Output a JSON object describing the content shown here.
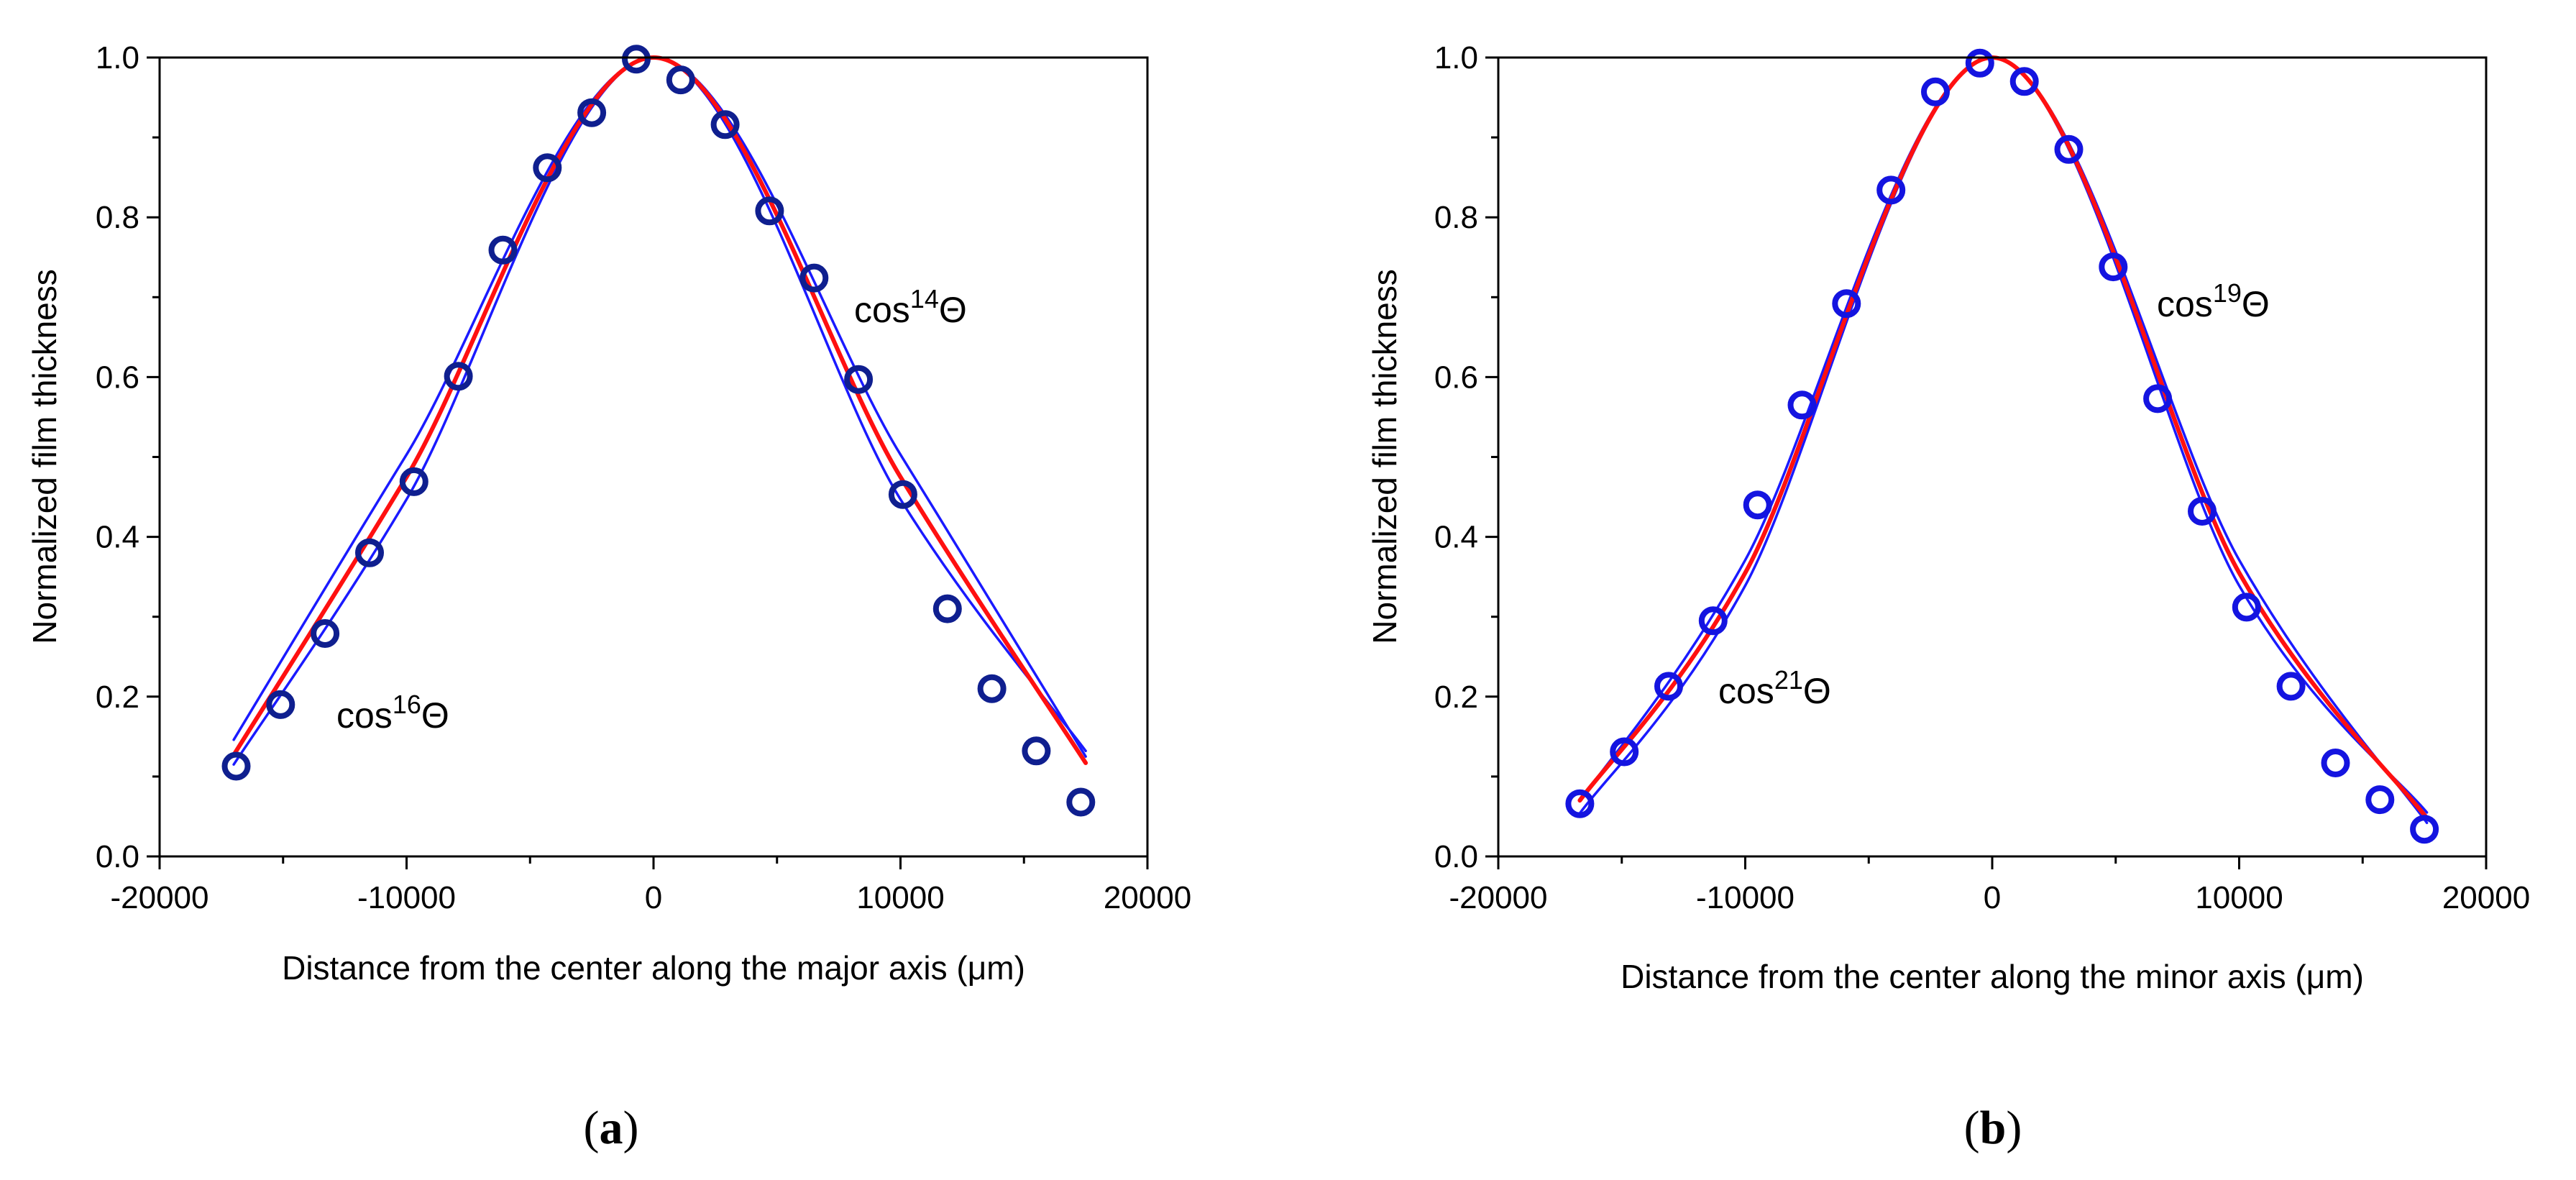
{
  "figure": {
    "panels": [
      {
        "panel_label": "a",
        "annotations": [
          {
            "base": "cos",
            "exponent": "16",
            "suffix": "Θ",
            "near_curve": "cos16"
          },
          {
            "base": "cos",
            "exponent": "14",
            "suffix": "Θ",
            "near_curve": "cos14"
          }
        ]
      },
      {
        "panel_label": "b",
        "annotations": [
          {
            "base": "cos",
            "exponent": "21",
            "suffix": "Θ",
            "near_curve": "cos21"
          },
          {
            "base": "cos",
            "exponent": "19",
            "suffix": "Θ",
            "near_curve": "cos19"
          }
        ]
      }
    ]
  },
  "chart_data": [
    {
      "type": "scatter",
      "title": "",
      "xlabel": "Distance from the center along the major axis (μm)",
      "ylabel": "Normalized film thickness",
      "xlim": [
        -20000,
        20000
      ],
      "ylim": [
        0.0,
        1.0
      ],
      "xticks": [
        -20000,
        -10000,
        0,
        10000,
        20000
      ],
      "xtick_labels": [
        "-20000",
        "-10000",
        "0",
        "10000",
        "20000"
      ],
      "yticks": [
        0.0,
        0.2,
        0.4,
        0.6,
        0.8,
        1.0
      ],
      "ytick_labels": [
        "0.0",
        "0.2",
        "0.4",
        "0.6",
        "0.8",
        "1.0"
      ],
      "grid": false,
      "series": [
        {
          "kind": "points",
          "color": "#0f1f8f",
          "x": [
            -16900,
            -15100,
            -13300,
            -11500,
            -9700,
            -7900,
            -6100,
            -4300,
            -2500,
            -700,
            1100,
            2900,
            4700,
            6500,
            8300,
            10100,
            11900,
            13700,
            15500,
            17300
          ],
          "y": [
            0.113,
            0.19,
            0.279,
            0.38,
            0.469,
            0.601,
            0.759,
            0.862,
            0.931,
            0.998,
            0.972,
            0.916,
            0.808,
            0.724,
            0.597,
            0.453,
            0.31,
            0.21,
            0.132,
            0.068
          ]
        },
        {
          "kind": "curve",
          "model": "cos16",
          "color": "#1a1aff",
          "x0": -17000,
          "x1": 17500,
          "x": [
            -17000,
            -10000,
            0,
            10000,
            17500
          ],
          "y": [
            0.146,
            0.503,
            1.0,
            0.503,
            0.125
          ]
        },
        {
          "kind": "curve",
          "model": "cos14",
          "color": "#1a1aff",
          "x0": -17000,
          "x1": 17500,
          "x": [
            -17000,
            -10000,
            0,
            10000,
            17500
          ],
          "y": [
            0.115,
            0.447,
            1.0,
            0.447,
            0.132
          ]
        },
        {
          "kind": "curve",
          "model": "fit",
          "color": "#ff1010",
          "x0": -17000,
          "x1": 17500,
          "x": [
            -17000,
            -10000,
            0,
            10000,
            17500
          ],
          "y": [
            0.127,
            0.475,
            1.0,
            0.475,
            0.117
          ]
        }
      ]
    },
    {
      "type": "scatter",
      "title": "",
      "xlabel": "Distance from the center along the minor axis (μm)",
      "ylabel": "Normalized film thickness",
      "xlim": [
        -20000,
        20000
      ],
      "ylim": [
        0.0,
        1.0
      ],
      "xticks": [
        -20000,
        -10000,
        0,
        10000,
        20000
      ],
      "xtick_labels": [
        "-20000",
        "-10000",
        "0",
        "10000",
        "20000"
      ],
      "yticks": [
        0.0,
        0.2,
        0.4,
        0.6,
        0.8,
        1.0
      ],
      "ytick_labels": [
        "0.0",
        "0.2",
        "0.4",
        "0.6",
        "0.8",
        "1.0"
      ],
      "grid": false,
      "series": [
        {
          "kind": "points",
          "color": "#1414e0",
          "x": [
            -16700,
            -14900,
            -13100,
            -11300,
            -9500,
            -7700,
            -5900,
            -4100,
            -2300,
            -500,
            1300,
            3100,
            4900,
            6700,
            8500,
            10300,
            12100,
            13900,
            15700,
            17500
          ],
          "y": [
            0.066,
            0.131,
            0.213,
            0.295,
            0.44,
            0.565,
            0.692,
            0.834,
            0.957,
            0.993,
            0.97,
            0.885,
            0.738,
            0.573,
            0.432,
            0.312,
            0.213,
            0.117,
            0.071,
            0.034
          ]
        },
        {
          "kind": "curve",
          "model": "cos21",
          "color": "#1a1aff",
          "x0": -16700,
          "x1": 17600,
          "x": [
            -16700,
            -10000,
            0,
            10000,
            17600
          ],
          "y": [
            0.069,
            0.371,
            1.0,
            0.371,
            0.042
          ]
        },
        {
          "kind": "curve",
          "model": "cos19",
          "color": "#1a1aff",
          "x0": -16700,
          "x1": 17600,
          "x": [
            -16700,
            -10000,
            0,
            10000,
            17600
          ],
          "y": [
            0.054,
            0.339,
            1.0,
            0.339,
            0.055
          ]
        },
        {
          "kind": "curve",
          "model": "fit",
          "color": "#ff1010",
          "x0": -16700,
          "x1": 17600,
          "x": [
            -16700,
            -10000,
            0,
            10000,
            17600
          ],
          "y": [
            0.07,
            0.355,
            1.0,
            0.355,
            0.048
          ]
        }
      ]
    }
  ]
}
